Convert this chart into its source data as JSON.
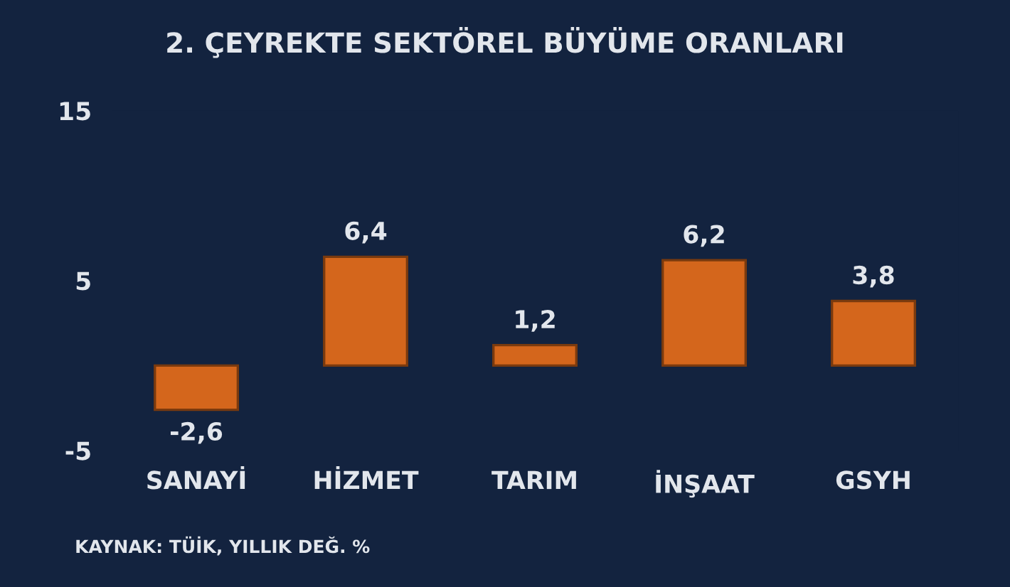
{
  "chart_data": {
    "type": "bar",
    "title": "2. ÇEYREKTE SEKTÖREL BÜYÜME ORANLARI",
    "categories": [
      "SANAYİ",
      "HİZMET",
      "TARIM",
      "İNŞAAT",
      "GSYH"
    ],
    "values": [
      -2.6,
      6.4,
      1.2,
      6.2,
      3.8
    ],
    "value_labels": [
      "-2,6",
      "6,4",
      "1,2",
      "6,2",
      "3,8"
    ],
    "color": "#d4661c",
    "ylim": [
      -5,
      15
    ],
    "yticks": [
      -5,
      5,
      15
    ],
    "grid": false,
    "legend": false,
    "annotations": [
      "KAYNAK: TÜİK, YILLIK DEĞ. %"
    ]
  }
}
